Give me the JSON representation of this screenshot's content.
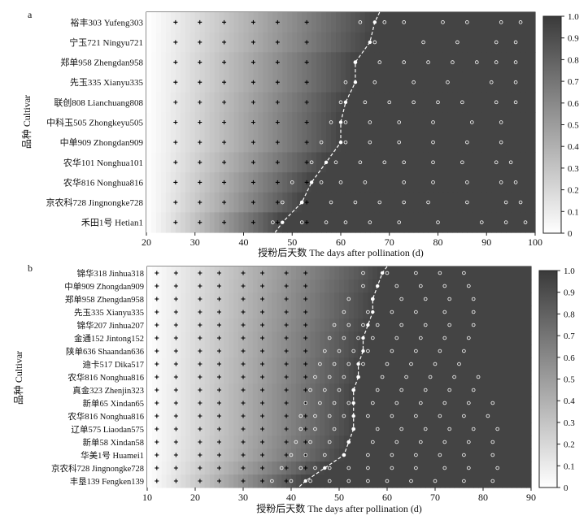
{
  "chart_data": [
    {
      "panel": "a",
      "type": "heatmap",
      "xlabel": "授粉后天数 The days after pollination (d)",
      "ylabel": "品种 Cultivar",
      "xlim": [
        20,
        100
      ],
      "xticks": [
        20,
        30,
        40,
        50,
        60,
        70,
        80,
        90,
        100
      ],
      "colorbar": {
        "min": 0,
        "max": 1,
        "ticks": [
          "0",
          "0.1",
          "0.2",
          "0.3",
          "0.4",
          "0.5",
          "0.6",
          "0.7",
          "0.8",
          "0.9",
          "1.0"
        ]
      },
      "cultivars": [
        "裕丰303 Yufeng303",
        "宁玉721 Ningyu721",
        "郑单958 Zhengdan958",
        "先玉335 Xianyu335",
        "联创808 Lianchuang808",
        "中科玉505 Zhongkeyu505",
        "中单909 Zhongdan909",
        "农华101 Nonghua101",
        "农华816 Nonghua816",
        "京农科728 Jingnongke728",
        "禾田1号 Hetian1"
      ],
      "threshold_line_days": [
        67,
        66,
        63,
        63,
        61,
        60,
        60,
        57,
        54,
        52,
        48
      ],
      "early_sampling_days": [
        26,
        31,
        36,
        42,
        47,
        53
      ],
      "late_sampling_days": [
        [
          64,
          69,
          73,
          81,
          86,
          93,
          97
        ],
        [
          67,
          77,
          84,
          92,
          96
        ],
        [
          63,
          68,
          73,
          78,
          83,
          88,
          92,
          96
        ],
        [
          61,
          67,
          75,
          82,
          91,
          96
        ],
        [
          60,
          65,
          70,
          75,
          80,
          85,
          92,
          96
        ],
        [
          58,
          61,
          66,
          72,
          79,
          87,
          93
        ],
        [
          56,
          61,
          66,
          72,
          79,
          86,
          93
        ],
        [
          54,
          59,
          64,
          69,
          73,
          79,
          85,
          92,
          95
        ],
        [
          50,
          56,
          60,
          65,
          73,
          79,
          86,
          93,
          96
        ],
        [
          48,
          52,
          58,
          63,
          68,
          73,
          78,
          86,
          94,
          97
        ],
        [
          46,
          52,
          57,
          61,
          66,
          72,
          80,
          89,
          94,
          98
        ]
      ]
    },
    {
      "panel": "b",
      "type": "heatmap",
      "xlabel": "授粉后天数 The days after pollination (d)",
      "ylabel": "品种 Cultivar",
      "xlim": [
        10,
        90
      ],
      "xticks": [
        10,
        20,
        30,
        40,
        50,
        60,
        70,
        80,
        90
      ],
      "colorbar": {
        "min": 0,
        "max": 1,
        "ticks": [
          "0",
          "0.1",
          "0.2",
          "0.3",
          "0.4",
          "0.5",
          "0.6",
          "0.7",
          "0.8",
          "0.9",
          "1.0"
        ]
      },
      "cultivars": [
        "锦华318 Jinhua318",
        "中单909 Zhongdan909",
        "郑单958 Zhengdan958",
        "先玉335 Xianyu335",
        "锦华207 Jinhua207",
        "金通152 Jintong152",
        "陕单636 Shaandan636",
        "迪卡517 Dika517",
        "农华816 Nonghua816",
        "真金323 Zhenjin323",
        "新单65 Xindan65",
        "农华816 Nonghua816",
        "辽单575 Liaodan575",
        "新单58 Xindan58",
        "华美1号 Huamei1",
        "京农科728 Jingnongke728",
        "丰垦139 Fengken139"
      ],
      "threshold_line_days": [
        59,
        58,
        57,
        57,
        56,
        55,
        55,
        54,
        54,
        53,
        53,
        53,
        53,
        52,
        51,
        47,
        43
      ],
      "early_sampling_days": [
        12,
        16,
        21,
        25,
        30,
        34,
        39,
        43
      ],
      "late_sampling_days": [
        [
          55,
          60,
          66,
          71,
          76
        ],
        [
          55,
          62,
          67,
          72,
          77
        ],
        [
          52,
          57,
          63,
          68,
          73,
          78
        ],
        [
          51,
          56,
          61,
          66,
          72,
          78
        ],
        [
          49,
          52,
          55,
          58,
          63,
          68,
          73,
          78
        ],
        [
          48,
          51,
          54,
          57,
          62,
          67,
          72,
          77
        ],
        [
          47,
          50,
          53,
          56,
          61,
          66,
          71,
          76
        ],
        [
          46,
          49,
          52,
          55,
          60,
          65,
          70,
          75
        ],
        [
          45,
          48,
          51,
          54,
          59,
          64,
          69,
          74,
          79
        ],
        [
          44,
          47,
          50,
          53,
          58,
          63,
          68,
          73,
          78
        ],
        [
          43,
          46,
          49,
          52,
          57,
          62,
          67,
          72,
          77,
          82
        ],
        [
          42,
          45,
          48,
          51,
          56,
          61,
          66,
          71,
          76,
          81
        ],
        [
          42,
          45,
          49,
          53,
          58,
          63,
          68,
          73,
          78,
          83
        ],
        [
          41,
          44,
          48,
          52,
          57,
          62,
          67,
          72,
          77,
          82
        ],
        [
          40,
          43,
          47,
          51,
          56,
          61,
          66,
          71,
          76,
          82
        ],
        [
          38,
          42,
          45,
          48,
          52,
          56,
          61,
          66,
          72,
          77,
          83
        ],
        [
          36,
          40,
          44,
          48,
          52,
          56,
          60,
          65,
          70,
          76,
          82
        ]
      ]
    }
  ]
}
